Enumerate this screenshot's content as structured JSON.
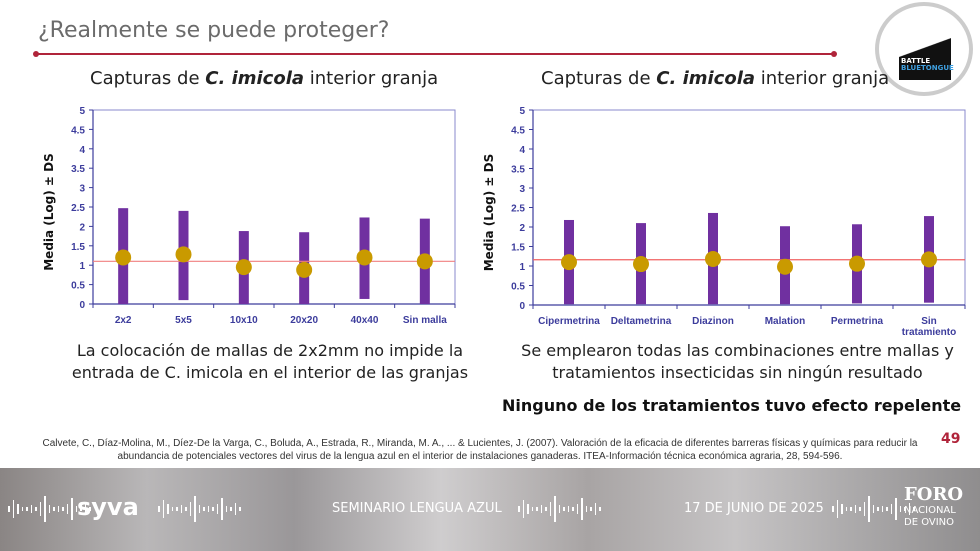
{
  "slide": {
    "title": "¿Realmente se puede proteger?",
    "page_number": "49",
    "logo_text": "BATTLE BLUETONGUE",
    "accent_color": "#b0243a"
  },
  "left": {
    "title_prefix": "Capturas de ",
    "title_species": "C. imicola",
    "title_suffix": " interior granja",
    "caption": "La colocación de mallas de 2x2mm no impide la entrada de C. imicola en el interior de las granjas"
  },
  "right": {
    "title_prefix": "Capturas de ",
    "title_species": "C. imicola",
    "title_suffix": " interior granja",
    "caption": "Se emplearon todas las combinaciones entre mallas y tratamientos insecticidas sin ningún resultado",
    "note": "Ninguno de los tratamientos tuvo efecto repelente"
  },
  "citation": "Calvete, C., Díaz-Molina, M., Díez-De la Varga, C., Boluda, A., Estrada, R., Miranda, M. A., ... & Lucientes, J. (2007). Valoración de la eficacia de diferentes barreras físicas y químicas para reducir la abundancia de potenciales vectores del virus de la lengua azul en el interior de instalaciones ganaderas. ITEA-Información técnica económica agraria, 28, 594-596.",
  "footer": {
    "brand": "syva",
    "event": "SEMINARIO LENGUA AZUL",
    "date": "17 DE JUNIO DE 2025",
    "org_line1": "FORO",
    "org_line2": "NACIONAL",
    "org_line3": "DE OVINO"
  },
  "chart_data": [
    {
      "type": "errorbar",
      "ylabel": "Media (Log) ± DS",
      "ylim": [
        0,
        5
      ],
      "yticks": [
        "0",
        "0.5",
        "1",
        "1.5",
        "2",
        "2.5",
        "3",
        "3.5",
        "4",
        "4.5",
        "5"
      ],
      "categories": [
        "2x2",
        "5x5",
        "10x10",
        "20x20",
        "40x40",
        "Sin malla"
      ],
      "mean": [
        1.2,
        1.28,
        0.95,
        0.88,
        1.2,
        1.1
      ],
      "upper": [
        2.47,
        2.4,
        1.88,
        1.85,
        2.23,
        2.2
      ],
      "lower": [
        0,
        0.1,
        0,
        0,
        0.13,
        0
      ],
      "reference_line": 1.1,
      "colors": {
        "bar": "#7030a0",
        "mean": "#c99a00",
        "ref": "#f08080",
        "axis": "#3c3c9c"
      }
    },
    {
      "type": "errorbar",
      "ylabel": "Media (Log) ± DS",
      "ylim": [
        0,
        5
      ],
      "yticks": [
        "0",
        "0.5",
        "1",
        "1.5",
        "2",
        "2.5",
        "3",
        "3.5",
        "4",
        "4.5",
        "5"
      ],
      "categories": [
        "Cipermetrina",
        "Deltametrina",
        "Diazinon",
        "Malation",
        "Permetrina",
        "Sin tratamiento"
      ],
      "mean": [
        1.1,
        1.05,
        1.18,
        0.98,
        1.06,
        1.17
      ],
      "upper": [
        2.18,
        2.1,
        2.36,
        2.02,
        2.07,
        2.28
      ],
      "lower": [
        0.02,
        0.02,
        0.02,
        0.02,
        0.04,
        0.06
      ],
      "reference_line": 1.16,
      "colors": {
        "bar": "#7030a0",
        "mean": "#c99a00",
        "ref": "#f06060",
        "axis": "#3c3c9c"
      }
    }
  ]
}
